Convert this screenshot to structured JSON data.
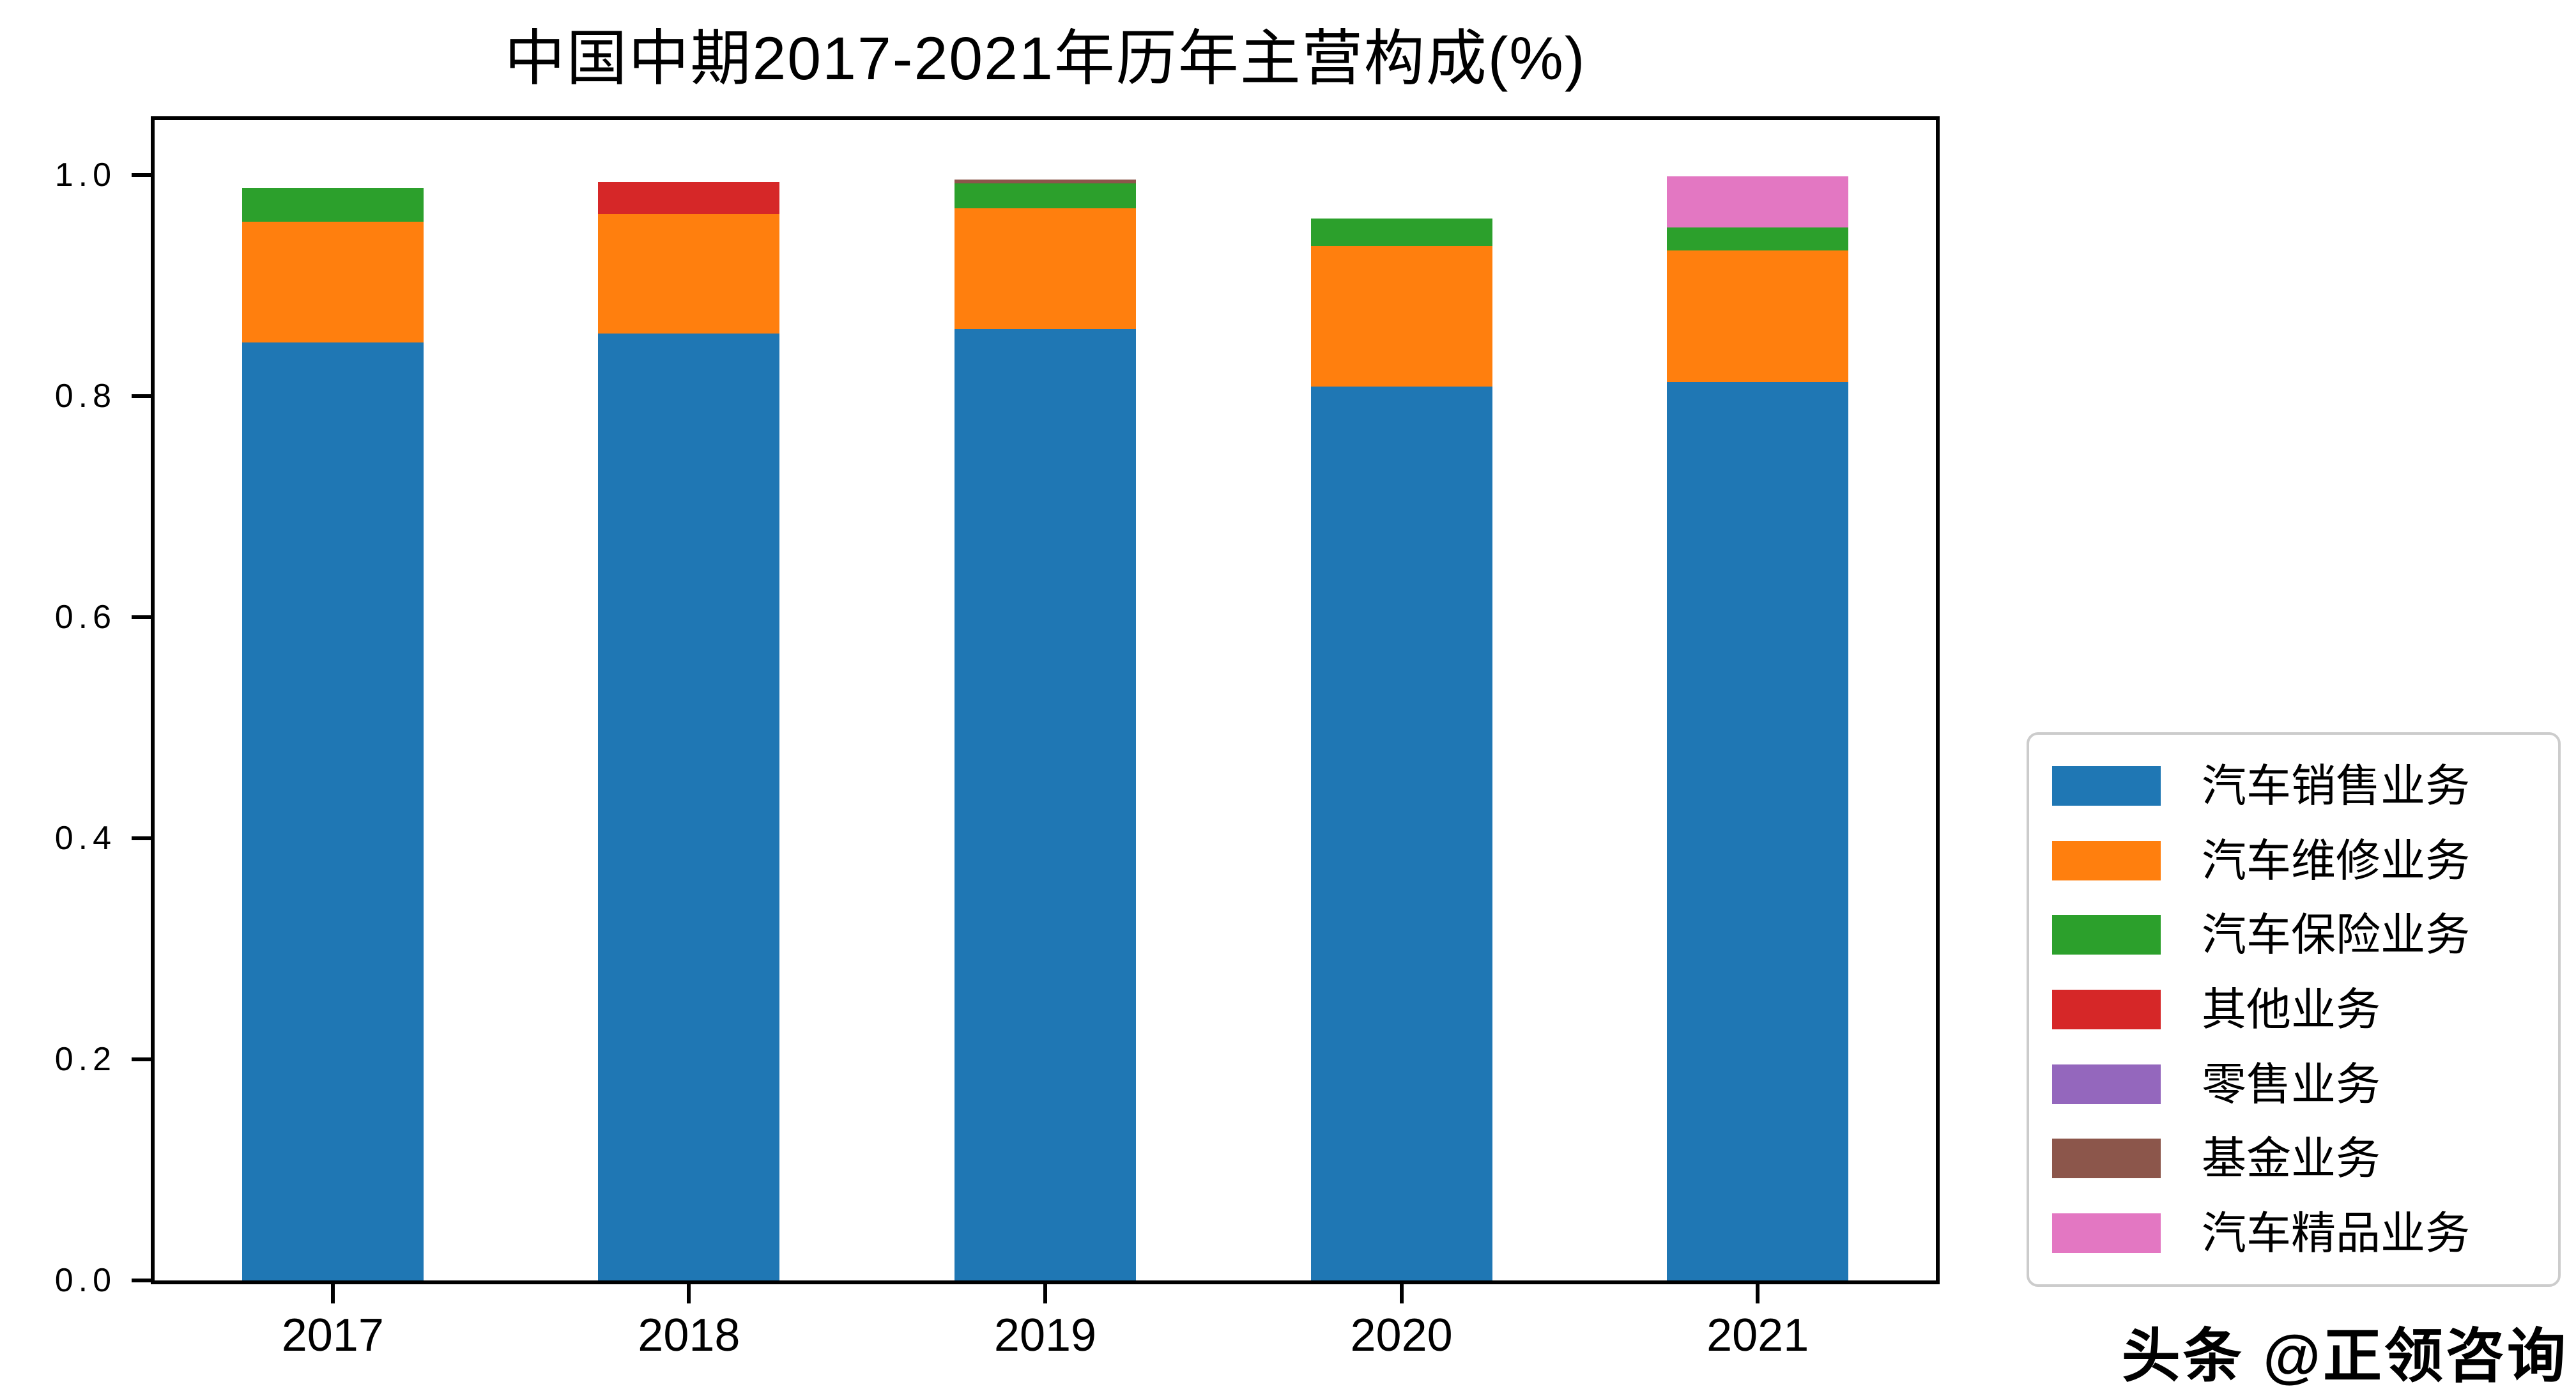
{
  "chart_data": {
    "type": "bar",
    "stacked": true,
    "title": "中国中期2017-2021年历年主营构成(%)",
    "categories": [
      "2017",
      "2018",
      "2019",
      "2020",
      "2021"
    ],
    "series": [
      {
        "name": "汽车销售业务",
        "color": "#1f77b4",
        "values": [
          0.849,
          0.857,
          0.861,
          0.809,
          0.813
        ]
      },
      {
        "name": "汽车维修业务",
        "color": "#ff7f0e",
        "values": [
          0.109,
          0.108,
          0.109,
          0.127,
          0.119
        ]
      },
      {
        "name": "汽车保险业务",
        "color": "#2ca02c",
        "values": [
          0.031,
          0.0,
          0.023,
          0.025,
          0.021
        ]
      },
      {
        "name": "其他业务",
        "color": "#d62728",
        "values": [
          0.0,
          0.029,
          0.0,
          0.0,
          0.0
        ]
      },
      {
        "name": "零售业务",
        "color": "#9467bd",
        "values": [
          0.0,
          0.0,
          0.0,
          0.0,
          0.0
        ]
      },
      {
        "name": "基金业务",
        "color": "#8c564b",
        "values": [
          0.0,
          0.0,
          0.003,
          0.0,
          0.0
        ]
      },
      {
        "name": "汽车精品业务",
        "color": "#e377c2",
        "values": [
          0.0,
          0.0,
          0.0,
          0.0,
          0.046
        ]
      }
    ],
    "yticks": [
      {
        "value": 0.0,
        "label": "0.0"
      },
      {
        "value": 0.2,
        "label": "0.2"
      },
      {
        "value": 0.4,
        "label": "0.4"
      },
      {
        "value": 0.6,
        "label": "0.6"
      },
      {
        "value": 0.8,
        "label": "0.8"
      },
      {
        "value": 1.0,
        "label": "1.0"
      }
    ],
    "ylim": [
      0,
      1.05
    ],
    "grid": false,
    "legend_position": "lower-right-outside",
    "legend_border_color": "#cccccc"
  },
  "watermark": {
    "text": "头条 @正领咨询"
  }
}
